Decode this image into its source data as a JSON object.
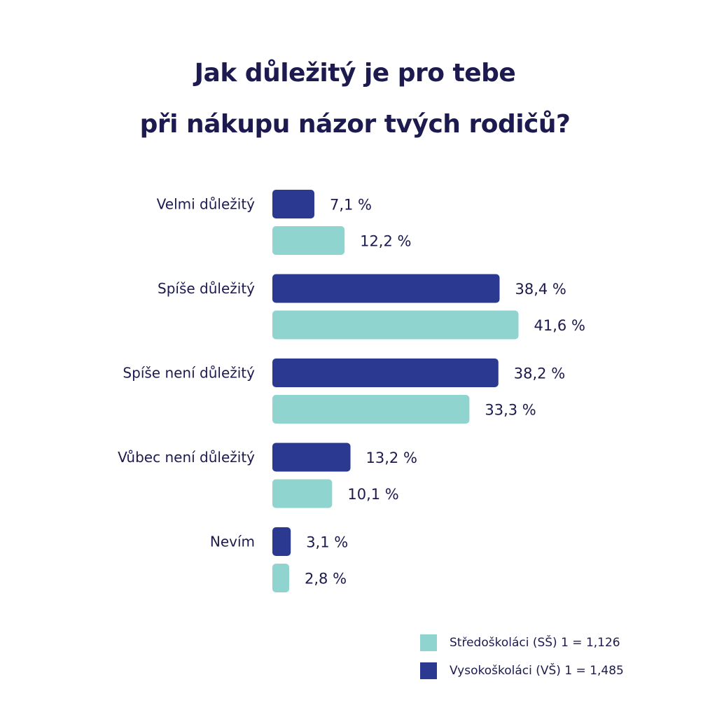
{
  "chart_data": {
    "type": "bar",
    "title": "Jak důležitý je pro tebe při nákupu názor tvých rodičů?",
    "title_lines": [
      "Jak důležitý je pro tebe",
      "při nákupu názor tvých rodičů?"
    ],
    "orientation": "horizontal",
    "categories": [
      "Velmi důležitý",
      "Spíše důležitý",
      "Spíše není důležitý",
      "Vůbec není důležitý",
      "Nevím"
    ],
    "series": [
      {
        "name": "Vysokoškoláci (VŠ) 1 = 1,485",
        "color": "#2b3990",
        "values": [
          7.1,
          38.4,
          38.2,
          13.2,
          3.1
        ],
        "labels": [
          "7,1 %",
          "38,4 %",
          "38,2 %",
          "13,2 %",
          "3,1 %"
        ]
      },
      {
        "name": "Středoškoláci (SŠ) 1 = 1,126",
        "color": "#8fd4ce",
        "values": [
          12.2,
          41.6,
          33.3,
          10.1,
          2.8
        ],
        "labels": [
          "12,2 %",
          "41,6 %",
          "33,3 %",
          "10,1 %",
          "2,8 %"
        ]
      }
    ],
    "legend_order": [
      1,
      0
    ],
    "legend_position": "bottom-right",
    "xlim": [
      0,
      42
    ],
    "grid": false,
    "xlabel": "",
    "ylabel": ""
  }
}
